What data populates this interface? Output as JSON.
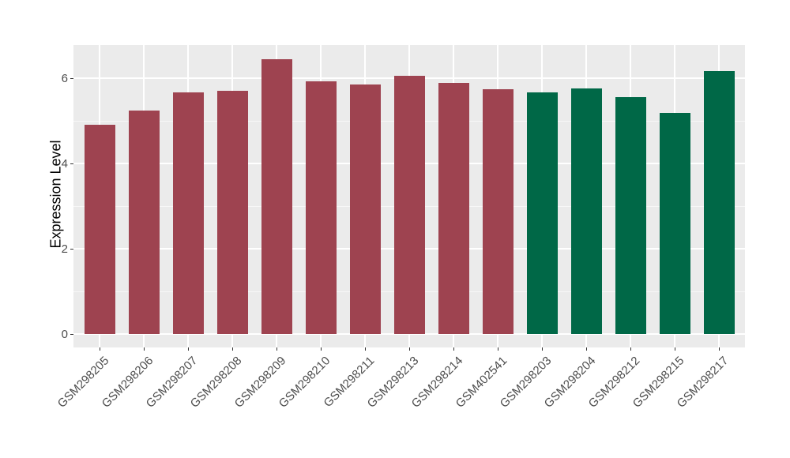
{
  "chart_data": {
    "type": "bar",
    "title": "",
    "xlabel": "",
    "ylabel": "Expression Level",
    "categories": [
      "GSM298205",
      "GSM298206",
      "GSM298207",
      "GSM298208",
      "GSM298209",
      "GSM298210",
      "GSM298211",
      "GSM298213",
      "GSM298214",
      "GSM402541",
      "GSM298203",
      "GSM298204",
      "GSM298212",
      "GSM298215",
      "GSM298217"
    ],
    "values": [
      4.91,
      5.25,
      5.66,
      5.7,
      6.45,
      5.93,
      5.85,
      6.05,
      5.88,
      5.74,
      5.67,
      5.76,
      5.55,
      5.18,
      6.16
    ],
    "bar_colors": [
      "#9E4350",
      "#9E4350",
      "#9E4350",
      "#9E4350",
      "#9E4350",
      "#9E4350",
      "#9E4350",
      "#9E4350",
      "#9E4350",
      "#9E4350",
      "#006847",
      "#006847",
      "#006847",
      "#006847",
      "#006847"
    ],
    "color_groups": [
      {
        "name": "group-1",
        "color": "#9E4350",
        "categories": [
          "GSM298205",
          "GSM298206",
          "GSM298207",
          "GSM298208",
          "GSM298209",
          "GSM298210",
          "GSM298211",
          "GSM298213",
          "GSM298214",
          "GSM402541"
        ]
      },
      {
        "name": "group-2",
        "color": "#006847",
        "categories": [
          "GSM298203",
          "GSM298204",
          "GSM298212",
          "GSM298215",
          "GSM298217"
        ]
      }
    ],
    "ylim": [
      -0.35,
      6.76
    ],
    "yticks": [
      0,
      2,
      4,
      6
    ],
    "yticks_minor": [
      1,
      3,
      5
    ],
    "grid": true,
    "legend": "none",
    "panel_background": "#EBEBEB",
    "grid_major_color": "#FFFFFF",
    "grid_minor_color": "#F7F7F7",
    "axis_text_color": "#4D4D4D"
  }
}
